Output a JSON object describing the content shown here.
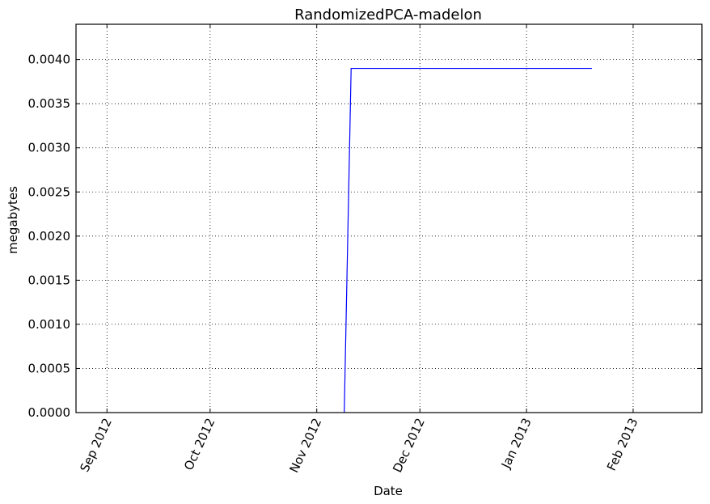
{
  "chart_data": {
    "type": "line",
    "title": "RandomizedPCA-madelon",
    "xlabel": "Date",
    "ylabel": "megabytes",
    "xlim": [
      "2012-08-23",
      "2013-02-21"
    ],
    "ylim": [
      0,
      0.0044
    ],
    "x_ticks": [
      "2012-09-01",
      "2012-10-01",
      "2012-11-01",
      "2012-12-01",
      "2013-01-01",
      "2013-02-01"
    ],
    "x_tick_labels": [
      "Sep 2012",
      "Oct 2012",
      "Nov 2012",
      "Dec 2012",
      "Jan 2013",
      "Feb 2013"
    ],
    "y_ticks": [
      0,
      0.0005,
      0.001,
      0.0015,
      0.002,
      0.0025,
      0.003,
      0.0035,
      0.004
    ],
    "y_tick_labels": [
      "0.0000",
      "0.0005",
      "0.0010",
      "0.0015",
      "0.0020",
      "0.0025",
      "0.0030",
      "0.0035",
      "0.0040"
    ],
    "grid": true,
    "series": [
      {
        "color": "#0000ff",
        "x": [
          "2012-11-09",
          "2012-11-11",
          "2013-01-20"
        ],
        "y": [
          0,
          0.0039,
          0.0039
        ]
      }
    ]
  }
}
